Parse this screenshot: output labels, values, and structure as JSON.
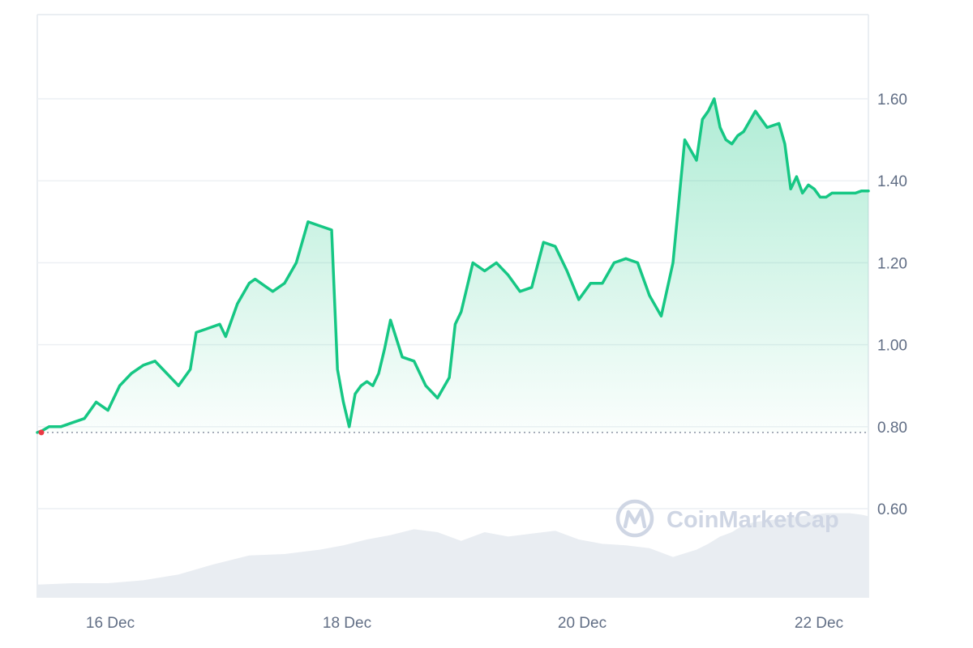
{
  "chart_data": {
    "type": "area",
    "y_axis": {
      "ticks": [
        0.6,
        0.8,
        1.0,
        1.2,
        1.4,
        1.6
      ],
      "tick_labels": [
        "0.60",
        "0.80",
        "1.00",
        "1.20",
        "1.40",
        "1.60"
      ],
      "position": "right"
    },
    "x_axis": {
      "tick_labels": [
        "16 Dec",
        "18 Dec",
        "20 Dec",
        "22 Dec"
      ]
    },
    "grid": true,
    "baseline_value": 0.786,
    "colors": {
      "line": "#16c784",
      "baseline": "#8a93a3",
      "grid": "#eceff3",
      "volume": "#e9edf2",
      "start_marker": "#ea3943",
      "watermark": "#cfd6e4"
    },
    "x_range_days": [
      0,
      7.06
    ],
    "price_series": {
      "x": [
        0,
        0.04,
        0.1,
        0.2,
        0.3,
        0.4,
        0.5,
        0.6,
        0.7,
        0.8,
        0.9,
        1.0,
        1.1,
        1.2,
        1.3,
        1.35,
        1.45,
        1.55,
        1.6,
        1.7,
        1.8,
        1.85,
        1.95,
        2.0,
        2.1,
        2.2,
        2.3,
        2.4,
        2.5,
        2.55,
        2.6,
        2.65,
        2.7,
        2.75,
        2.8,
        2.85,
        2.9,
        2.95,
        3.0,
        3.1,
        3.2,
        3.3,
        3.4,
        3.5,
        3.55,
        3.6,
        3.7,
        3.8,
        3.9,
        4.0,
        4.1,
        4.2,
        4.3,
        4.4,
        4.5,
        4.6,
        4.7,
        4.8,
        4.9,
        5.0,
        5.1,
        5.2,
        5.3,
        5.4,
        5.5,
        5.6,
        5.65,
        5.7,
        5.75,
        5.8,
        5.85,
        5.9,
        5.95,
        6.0,
        6.1,
        6.2,
        6.3,
        6.35,
        6.4,
        6.45,
        6.5,
        6.55,
        6.6,
        6.65,
        6.7,
        6.75,
        6.8,
        6.85,
        6.9,
        6.95,
        7.0,
        7.06
      ],
      "y": [
        0.786,
        0.79,
        0.8,
        0.8,
        0.81,
        0.82,
        0.86,
        0.84,
        0.9,
        0.93,
        0.95,
        0.96,
        0.93,
        0.9,
        0.94,
        1.03,
        1.04,
        1.05,
        1.02,
        1.1,
        1.15,
        1.16,
        1.14,
        1.13,
        1.15,
        1.2,
        1.3,
        1.29,
        1.28,
        0.94,
        0.86,
        0.8,
        0.88,
        0.9,
        0.91,
        0.9,
        0.93,
        0.99,
        1.06,
        0.97,
        0.96,
        0.9,
        0.87,
        0.92,
        1.05,
        1.08,
        1.2,
        1.18,
        1.2,
        1.17,
        1.13,
        1.14,
        1.25,
        1.24,
        1.18,
        1.11,
        1.15,
        1.15,
        1.2,
        1.21,
        1.2,
        1.12,
        1.07,
        1.2,
        1.5,
        1.45,
        1.55,
        1.57,
        1.6,
        1.53,
        1.5,
        1.49,
        1.51,
        1.52,
        1.57,
        1.53,
        1.54,
        1.49,
        1.38,
        1.41,
        1.37,
        1.39,
        1.38,
        1.36,
        1.36,
        1.37,
        1.37,
        1.37,
        1.37,
        1.37,
        1.375,
        1.375
      ]
    },
    "volume_series": {
      "x": [
        0,
        0.3,
        0.6,
        0.9,
        1.2,
        1.5,
        1.8,
        2.1,
        2.4,
        2.6,
        2.8,
        3.0,
        3.2,
        3.4,
        3.6,
        3.8,
        4.0,
        4.2,
        4.4,
        4.6,
        4.8,
        5.0,
        5.2,
        5.4,
        5.6,
        5.7,
        5.8,
        5.9,
        6.0,
        6.1,
        6.2,
        6.3,
        6.4,
        6.5,
        6.6,
        6.7,
        6.8,
        6.9,
        7.0,
        7.06
      ],
      "y": [
        0.09,
        0.1,
        0.1,
        0.12,
        0.16,
        0.23,
        0.29,
        0.3,
        0.33,
        0.36,
        0.4,
        0.43,
        0.47,
        0.45,
        0.39,
        0.45,
        0.42,
        0.44,
        0.46,
        0.4,
        0.37,
        0.36,
        0.34,
        0.28,
        0.33,
        0.37,
        0.42,
        0.45,
        0.5,
        0.52,
        0.53,
        0.54,
        0.55,
        0.56,
        0.57,
        0.58,
        0.58,
        0.58,
        0.57,
        0.56
      ]
    }
  },
  "watermark": {
    "text": "CoinMarketCap",
    "icon": "coinmarketcap-logo-icon"
  }
}
